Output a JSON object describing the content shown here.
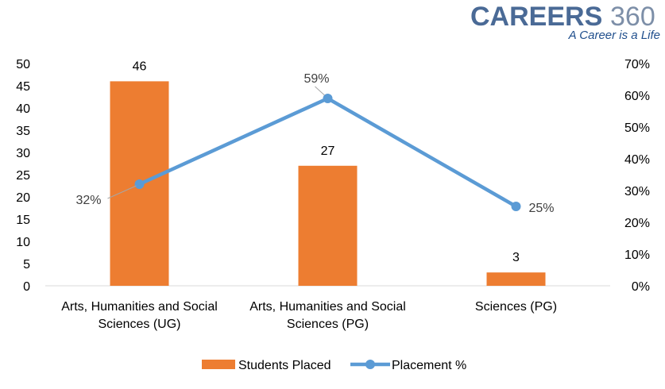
{
  "brand": {
    "name": "CAREERS",
    "number": "360",
    "tagline": "A Career is a Life",
    "name_color": "#4a6a96",
    "number_color": "#7d8fa8",
    "tagline_color": "#1f4e8c"
  },
  "chart_data": {
    "type": "bar",
    "categories": [
      [
        "Arts, Humanities and Social",
        "Sciences (UG)"
      ],
      [
        "Arts, Humanities and Social",
        "Sciences (PG)"
      ],
      [
        "Sciences (PG)"
      ]
    ],
    "series": [
      {
        "name": "Students Placed",
        "type": "bar",
        "axis": "left",
        "values": [
          46,
          27,
          3
        ],
        "labels": [
          "46",
          "27",
          "3"
        ],
        "color": "#ed7d31"
      },
      {
        "name": "Placement %",
        "type": "line",
        "axis": "right",
        "values": [
          32,
          59,
          25
        ],
        "labels": [
          "32%",
          "59%",
          "25%"
        ],
        "color": "#5b9bd5"
      }
    ],
    "y_left": {
      "min": 0,
      "max": 50,
      "step": 5,
      "ticks": [
        "0",
        "5",
        "10",
        "15",
        "20",
        "25",
        "30",
        "35",
        "40",
        "45",
        "50"
      ]
    },
    "y_right": {
      "min": 0,
      "max": 70,
      "step": 10,
      "ticks": [
        "0%",
        "10%",
        "20%",
        "30%",
        "40%",
        "50%",
        "60%",
        "70%"
      ]
    },
    "grid": false,
    "legend_position": "bottom"
  }
}
